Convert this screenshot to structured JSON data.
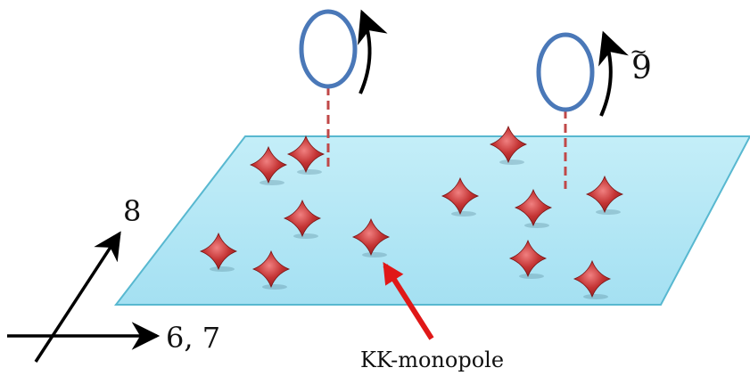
{
  "axes": {
    "vertical_label": "8",
    "horizontal_label": "6, 7"
  },
  "loop_label": "9",
  "loop_label_accent": "~",
  "arrow_label": "KK-monopole",
  "colors": {
    "plane_fill_top": "#c4eef8",
    "plane_fill_bottom": "#a4e0f2",
    "plane_edge": "#58b8d0",
    "loop_stroke": "#4a78b8",
    "dashed_line": "#c04848",
    "arrow_red": "#e01818",
    "star_fill": "#c43434",
    "axis": "#000000"
  },
  "monopole_count": 14,
  "loop_count": 2
}
